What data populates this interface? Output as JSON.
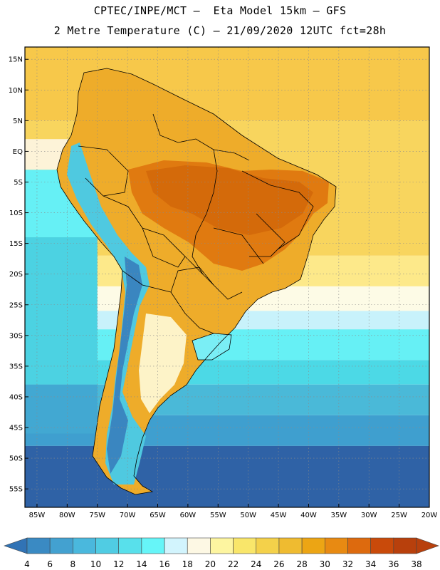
{
  "header": {
    "title_line1": "CPTEC/INPE/MCT –  Eta Model 15km – GFS",
    "title_line2": "2 Metre Temperature (C) – 21/09/2020 12UTC fct=28h"
  },
  "map": {
    "lat_range": [
      -58,
      17
    ],
    "lon_range": [
      -87,
      -20
    ],
    "lat_ticks": [
      {
        "value": 15,
        "label": "15N"
      },
      {
        "value": 10,
        "label": "10N"
      },
      {
        "value": 5,
        "label": "5N"
      },
      {
        "value": 0,
        "label": "EQ"
      },
      {
        "value": -5,
        "label": "5S"
      },
      {
        "value": -10,
        "label": "10S"
      },
      {
        "value": -15,
        "label": "15S"
      },
      {
        "value": -20,
        "label": "20S"
      },
      {
        "value": -25,
        "label": "25S"
      },
      {
        "value": -30,
        "label": "30S"
      },
      {
        "value": -35,
        "label": "35S"
      },
      {
        "value": -40,
        "label": "40S"
      },
      {
        "value": -45,
        "label": "45S"
      },
      {
        "value": -50,
        "label": "50S"
      },
      {
        "value": -55,
        "label": "55S"
      }
    ],
    "lon_ticks": [
      {
        "value": -85,
        "label": "85W"
      },
      {
        "value": -80,
        "label": "80W"
      },
      {
        "value": -75,
        "label": "75W"
      },
      {
        "value": -70,
        "label": "70W"
      },
      {
        "value": -65,
        "label": "65W"
      },
      {
        "value": -60,
        "label": "60W"
      },
      {
        "value": -55,
        "label": "55W"
      },
      {
        "value": -50,
        "label": "50W"
      },
      {
        "value": -45,
        "label": "45W"
      },
      {
        "value": -40,
        "label": "40W"
      },
      {
        "value": -35,
        "label": "35W"
      },
      {
        "value": -30,
        "label": "30W"
      },
      {
        "value": -25,
        "label": "25W"
      },
      {
        "value": -20,
        "label": "20W"
      }
    ],
    "ocean_bands": [
      {
        "lat_top": 17,
        "lat_bottom": 5,
        "color": "#f7c84a"
      },
      {
        "lat_top": 5,
        "lat_bottom": -17,
        "color": "#f8d55e"
      },
      {
        "lat_top": -17,
        "lat_bottom": -22,
        "color": "#fde98a"
      },
      {
        "lat_top": -22,
        "lat_bottom": -26,
        "color": "#fdfbe6"
      },
      {
        "lat_top": -26,
        "lat_bottom": -29,
        "color": "#c8f2fb"
      },
      {
        "lat_top": -29,
        "lat_bottom": -34,
        "color": "#66f0f5"
      },
      {
        "lat_top": -34,
        "lat_bottom": -38,
        "color": "#4cd9e6"
      },
      {
        "lat_top": -38,
        "lat_bottom": -43,
        "color": "#4ab9d8"
      },
      {
        "lat_top": -43,
        "lat_bottom": -48,
        "color": "#3f9fcf"
      },
      {
        "lat_top": -48,
        "lat_bottom": -58,
        "color": "#2f62a6"
      }
    ],
    "pacific_bands": [
      {
        "lat_top": 2,
        "lat_bottom": -3,
        "color": "#fdf3d8"
      },
      {
        "lat_top": -3,
        "lat_bottom": -14,
        "color": "#66f0f5"
      },
      {
        "lat_top": -14,
        "lat_bottom": -38,
        "color": "#4cd2e2"
      },
      {
        "lat_top": -38,
        "lat_bottom": -46,
        "color": "#42a8d2"
      }
    ],
    "land_color": "#eeac2a",
    "hot_color": "#e07a10",
    "hottest_color": "#d46a0a",
    "andes_color": "#4fc9e0",
    "andes_cold_color": "#3a86c0",
    "patagonia_color": "#fdf3c8",
    "uruguay_color": "#7aeef5"
  },
  "colorbar": {
    "values": [
      4,
      6,
      8,
      10,
      12,
      14,
      16,
      18,
      20,
      22,
      24,
      26,
      28,
      30,
      32,
      34,
      36,
      38
    ],
    "low_color": "#3173b5",
    "high_color": "#b8400c",
    "colors": [
      "#3173b5",
      "#3a8ac3",
      "#43a1d0",
      "#4ab8dd",
      "#50cce3",
      "#58e0eb",
      "#66f5f8",
      "#d2f4fd",
      "#fdf8e4",
      "#fdf5a0",
      "#f9e66a",
      "#f4d14a",
      "#efbb30",
      "#eca514",
      "#e88a12",
      "#dd6a0e",
      "#c94a0a",
      "#b8400c"
    ]
  }
}
